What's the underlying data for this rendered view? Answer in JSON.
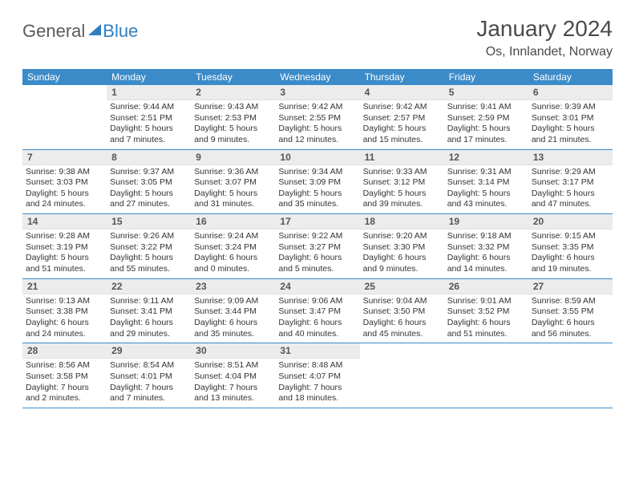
{
  "brand": {
    "part1": "General",
    "part2": "Blue"
  },
  "title": {
    "month": "January 2024",
    "location": "Os, Innlandet, Norway"
  },
  "colors": {
    "header_bg": "#3b8bc9",
    "header_text": "#ffffff",
    "daynum_bg": "#ececec",
    "daynum_text": "#555555",
    "body_text": "#333333",
    "rule": "#3b8bc9",
    "logo_gray": "#5a5a5a",
    "logo_blue": "#2f7fc1",
    "title_text": "#4a4a4a"
  },
  "fonts": {
    "month_title_pt": 28,
    "location_pt": 16,
    "header_pt": 12,
    "daynum_pt": 12,
    "body_pt": 10.5,
    "logo_pt": 22
  },
  "dow": [
    "Sunday",
    "Monday",
    "Tuesday",
    "Wednesday",
    "Thursday",
    "Friday",
    "Saturday"
  ],
  "weeks": [
    [
      null,
      {
        "n": "1",
        "sunrise": "9:44 AM",
        "sunset": "2:51 PM",
        "daylight": "5 hours and 7 minutes."
      },
      {
        "n": "2",
        "sunrise": "9:43 AM",
        "sunset": "2:53 PM",
        "daylight": "5 hours and 9 minutes."
      },
      {
        "n": "3",
        "sunrise": "9:42 AM",
        "sunset": "2:55 PM",
        "daylight": "5 hours and 12 minutes."
      },
      {
        "n": "4",
        "sunrise": "9:42 AM",
        "sunset": "2:57 PM",
        "daylight": "5 hours and 15 minutes."
      },
      {
        "n": "5",
        "sunrise": "9:41 AM",
        "sunset": "2:59 PM",
        "daylight": "5 hours and 17 minutes."
      },
      {
        "n": "6",
        "sunrise": "9:39 AM",
        "sunset": "3:01 PM",
        "daylight": "5 hours and 21 minutes."
      }
    ],
    [
      {
        "n": "7",
        "sunrise": "9:38 AM",
        "sunset": "3:03 PM",
        "daylight": "5 hours and 24 minutes."
      },
      {
        "n": "8",
        "sunrise": "9:37 AM",
        "sunset": "3:05 PM",
        "daylight": "5 hours and 27 minutes."
      },
      {
        "n": "9",
        "sunrise": "9:36 AM",
        "sunset": "3:07 PM",
        "daylight": "5 hours and 31 minutes."
      },
      {
        "n": "10",
        "sunrise": "9:34 AM",
        "sunset": "3:09 PM",
        "daylight": "5 hours and 35 minutes."
      },
      {
        "n": "11",
        "sunrise": "9:33 AM",
        "sunset": "3:12 PM",
        "daylight": "5 hours and 39 minutes."
      },
      {
        "n": "12",
        "sunrise": "9:31 AM",
        "sunset": "3:14 PM",
        "daylight": "5 hours and 43 minutes."
      },
      {
        "n": "13",
        "sunrise": "9:29 AM",
        "sunset": "3:17 PM",
        "daylight": "5 hours and 47 minutes."
      }
    ],
    [
      {
        "n": "14",
        "sunrise": "9:28 AM",
        "sunset": "3:19 PM",
        "daylight": "5 hours and 51 minutes."
      },
      {
        "n": "15",
        "sunrise": "9:26 AM",
        "sunset": "3:22 PM",
        "daylight": "5 hours and 55 minutes."
      },
      {
        "n": "16",
        "sunrise": "9:24 AM",
        "sunset": "3:24 PM",
        "daylight": "6 hours and 0 minutes."
      },
      {
        "n": "17",
        "sunrise": "9:22 AM",
        "sunset": "3:27 PM",
        "daylight": "6 hours and 5 minutes."
      },
      {
        "n": "18",
        "sunrise": "9:20 AM",
        "sunset": "3:30 PM",
        "daylight": "6 hours and 9 minutes."
      },
      {
        "n": "19",
        "sunrise": "9:18 AM",
        "sunset": "3:32 PM",
        "daylight": "6 hours and 14 minutes."
      },
      {
        "n": "20",
        "sunrise": "9:15 AM",
        "sunset": "3:35 PM",
        "daylight": "6 hours and 19 minutes."
      }
    ],
    [
      {
        "n": "21",
        "sunrise": "9:13 AM",
        "sunset": "3:38 PM",
        "daylight": "6 hours and 24 minutes."
      },
      {
        "n": "22",
        "sunrise": "9:11 AM",
        "sunset": "3:41 PM",
        "daylight": "6 hours and 29 minutes."
      },
      {
        "n": "23",
        "sunrise": "9:09 AM",
        "sunset": "3:44 PM",
        "daylight": "6 hours and 35 minutes."
      },
      {
        "n": "24",
        "sunrise": "9:06 AM",
        "sunset": "3:47 PM",
        "daylight": "6 hours and 40 minutes."
      },
      {
        "n": "25",
        "sunrise": "9:04 AM",
        "sunset": "3:50 PM",
        "daylight": "6 hours and 45 minutes."
      },
      {
        "n": "26",
        "sunrise": "9:01 AM",
        "sunset": "3:52 PM",
        "daylight": "6 hours and 51 minutes."
      },
      {
        "n": "27",
        "sunrise": "8:59 AM",
        "sunset": "3:55 PM",
        "daylight": "6 hours and 56 minutes."
      }
    ],
    [
      {
        "n": "28",
        "sunrise": "8:56 AM",
        "sunset": "3:58 PM",
        "daylight": "7 hours and 2 minutes."
      },
      {
        "n": "29",
        "sunrise": "8:54 AM",
        "sunset": "4:01 PM",
        "daylight": "7 hours and 7 minutes."
      },
      {
        "n": "30",
        "sunrise": "8:51 AM",
        "sunset": "4:04 PM",
        "daylight": "7 hours and 13 minutes."
      },
      {
        "n": "31",
        "sunrise": "8:48 AM",
        "sunset": "4:07 PM",
        "daylight": "7 hours and 18 minutes."
      },
      null,
      null,
      null
    ]
  ],
  "labels": {
    "sunrise": "Sunrise:",
    "sunset": "Sunset:",
    "daylight": "Daylight:"
  }
}
